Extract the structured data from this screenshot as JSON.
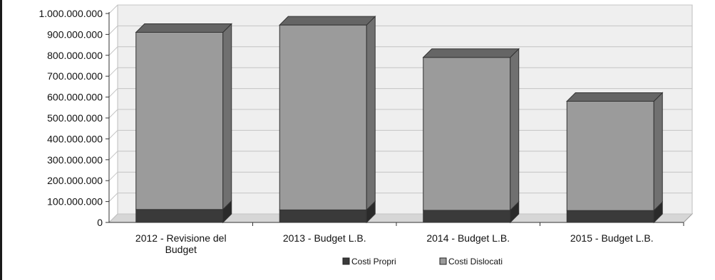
{
  "chart_data": {
    "type": "bar",
    "stacked": true,
    "three_d": true,
    "categories": [
      [
        "2012 - Revisione del",
        "Budget"
      ],
      [
        "2013 - Budget L.B."
      ],
      [
        "2014 - Budget L.B."
      ],
      [
        "2015 - Budget L.B."
      ]
    ],
    "series": [
      {
        "name": "Costi Propri",
        "values": [
          62000000,
          60000000,
          58000000,
          57000000
        ],
        "color": "#3a3a3a"
      },
      {
        "name": "Costi Dislocati",
        "values": [
          848000000,
          885000000,
          732000000,
          523000000
        ],
        "color": "#9b9b9b"
      }
    ],
    "yticks": [
      "1.000.000.000",
      "900.000.000",
      "800.000.000",
      "700.000.000",
      "600.000.000",
      "500.000.000",
      "400.000.000",
      "300.000.000",
      "200.000.000",
      "100.000.000",
      "0"
    ],
    "ylim": [
      0,
      1000000000
    ],
    "grid": true,
    "legend": "bottom"
  }
}
